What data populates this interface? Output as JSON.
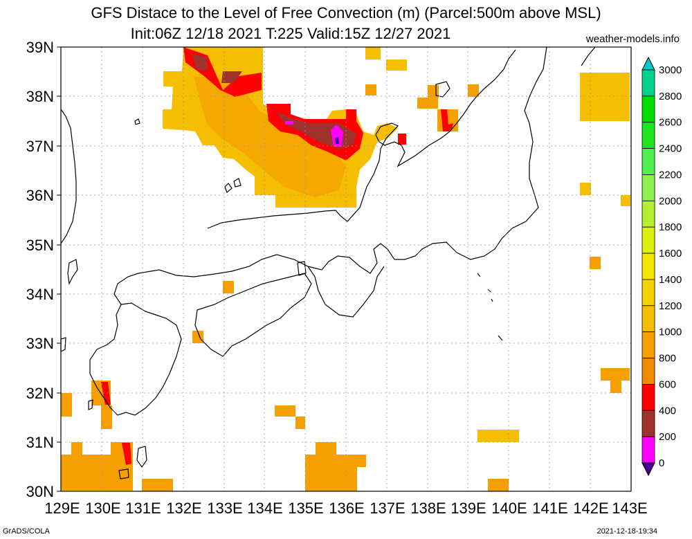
{
  "title_line1": "GFS Distace to the Level of Free Convection (m) (Parcel:500m above MSL)",
  "title_line2": "Init:06Z 12/18 2021 T:225 Valid:15Z 12/27 2021",
  "credit": "weather-models.info",
  "footer_left": "GrADS/COLA",
  "footer_right": "2021-12-18-19:34",
  "lat_labels": [
    "39N",
    "38N",
    "37N",
    "36N",
    "35N",
    "34N",
    "33N",
    "32N",
    "31N",
    "30N"
  ],
  "lon_labels": [
    "129E",
    "130E",
    "131E",
    "132E",
    "133E",
    "134E",
    "135E",
    "136E",
    "137E",
    "138E",
    "139E",
    "140E",
    "141E",
    "142E",
    "143E"
  ],
  "colorbar": {
    "labels": [
      "3000",
      "2800",
      "2600",
      "2400",
      "2200",
      "2000",
      "1800",
      "1600",
      "1400",
      "1200",
      "1000",
      "800",
      "600",
      "400",
      "200",
      "0"
    ],
    "colors": [
      "#00c8c8",
      "#00d28c",
      "#00dc00",
      "#1ee61e",
      "#50f050",
      "#8cf050",
      "#b4f02d",
      "#dcf00a",
      "#f5e600",
      "#f5d200",
      "#f5be00",
      "#f5a000",
      "#f08c00",
      "#ff0000",
      "#a0322d",
      "#ff00ff",
      "#460096"
    ]
  },
  "field_legend": {
    "levels": [
      0,
      200,
      400,
      600,
      800,
      1000,
      1200,
      1400,
      1600,
      1800,
      2000,
      2200,
      2400,
      2600,
      2800,
      3000
    ]
  }
}
